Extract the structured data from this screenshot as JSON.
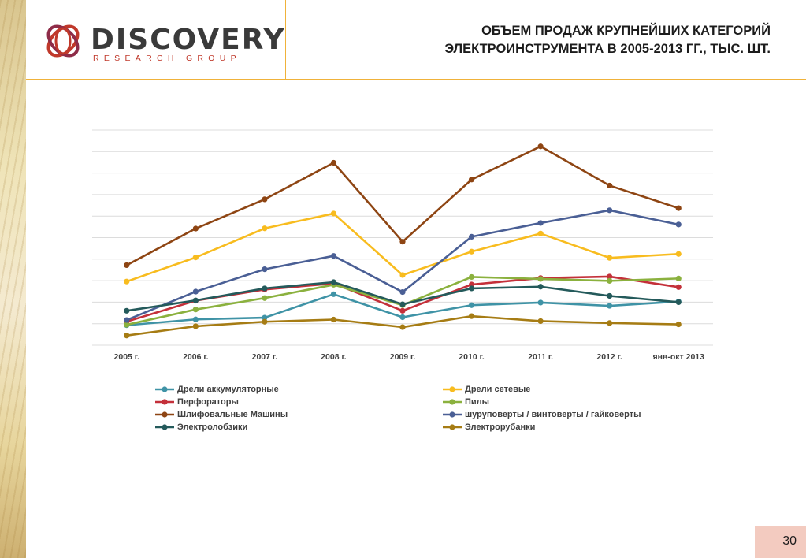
{
  "header": {
    "logo_word": "DISCOVERY",
    "logo_sub": "RESEARCH GROUP",
    "title_line1": "ОБЪЕМ ПРОДАЖ КРУПНЕЙШИХ КАТЕГОРИЙ",
    "title_line2": "ЭЛЕКТРОИНСТРУМЕНТА В 2005-2013 ГГ., ТЫС. ШТ."
  },
  "footer": {
    "page_number": "30"
  },
  "colors": {
    "accent_rule": "#f0b23a",
    "page_box": "#f3cbc0"
  },
  "chart_data": {
    "type": "line",
    "title": "",
    "xlabel": "",
    "ylabel": "",
    "categories": [
      "2005 г.",
      "2006 г.",
      "2007 г.",
      "2008 г.",
      "2009 г.",
      "2010 г.",
      "2011 г.",
      "2012 г.",
      "янв-окт 2013"
    ],
    "ylim": [
      0,
      10
    ],
    "grid": true,
    "legend_position": "bottom",
    "series": [
      {
        "name": "Дрели аккумуляторные",
        "color": "#3f93a6",
        "values": [
          0.93,
          1.2,
          1.28,
          2.37,
          1.3,
          1.86,
          1.98,
          1.83,
          2.03
        ]
      },
      {
        "name": "Дрели сетевые",
        "color": "#f8bc1f",
        "values": [
          2.96,
          4.08,
          5.43,
          6.12,
          3.26,
          4.35,
          5.19,
          4.06,
          4.24
        ]
      },
      {
        "name": "Перфораторы",
        "color": "#c4303a",
        "values": [
          1.1,
          2.07,
          2.59,
          2.87,
          1.6,
          2.82,
          3.12,
          3.19,
          2.7
        ]
      },
      {
        "name": "Пилы",
        "color": "#8bb13e",
        "values": [
          0.95,
          1.66,
          2.19,
          2.81,
          1.86,
          3.17,
          3.08,
          2.99,
          3.1
        ]
      },
      {
        "name": "Шлифовальные Машины",
        "color": "#8e4513",
        "values": [
          3.72,
          5.42,
          6.78,
          8.48,
          4.81,
          7.7,
          9.24,
          7.42,
          6.37
        ]
      },
      {
        "name": "шуруповерты / винтоверты / гайковерты",
        "color": "#4a5f95",
        "values": [
          1.17,
          2.49,
          3.53,
          4.15,
          2.47,
          5.04,
          5.68,
          6.27,
          5.61
        ]
      },
      {
        "name": "Электролобзики",
        "color": "#245a5b",
        "values": [
          1.6,
          2.08,
          2.64,
          2.93,
          1.9,
          2.64,
          2.72,
          2.29,
          2.0
        ]
      },
      {
        "name": "Электрорубанки",
        "color": "#a67c14",
        "values": [
          0.45,
          0.88,
          1.09,
          1.19,
          0.84,
          1.35,
          1.12,
          1.03,
          0.97
        ]
      }
    ]
  }
}
